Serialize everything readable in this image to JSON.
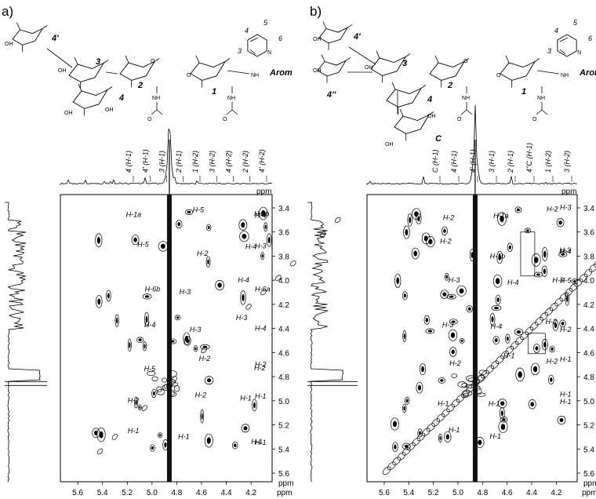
{
  "panels": [
    {
      "tag": "a)",
      "structure_labels": {
        "residues": [
          "4'",
          "3",
          "4",
          "2",
          "1",
          "Arom"
        ],
        "ring_numbers": [
          "4",
          "5",
          "6",
          "3"
        ]
      },
      "top_trace_labels": [
        "4 (H-1)",
        "4' (H-1)",
        "3 (H-1)",
        "2 (H-1)",
        "1 (H-2)",
        "3 (H-2)",
        "4 (H-2)",
        "2 (H-2)",
        "4' (H-2)"
      ],
      "cross_peak_labels": [
        "H-1a",
        "H-5",
        "H-1b",
        "H-4",
        "H-5",
        "H-2",
        "H-4",
        "H-3",
        "H-6b",
        "H-3",
        "H-4",
        "H-6a",
        "H-4",
        "H-3",
        "H-3",
        "H-4",
        "H-5",
        "H-2",
        "H-2",
        "H-2",
        "H-2",
        "H-2",
        "H-1",
        "H-1",
        "H-1",
        "H-1",
        "H-1",
        "H-1"
      ],
      "axis_unit": "ppm",
      "x_ticks": [
        "5.6",
        "5.4",
        "5.2",
        "5.0",
        "4.8",
        "4.6",
        "4.4",
        "4.2",
        "ppm"
      ],
      "y_ticks": [
        "3.4",
        "3.6",
        "3.8",
        "4.0",
        "4.2",
        "4.4",
        "4.6",
        "4.8",
        "5.0",
        "5.2",
        "5.4",
        "5.6",
        "ppm"
      ]
    },
    {
      "tag": "b)",
      "structure_labels": {
        "residues": [
          "4'",
          "3",
          "4''",
          "4",
          "2",
          "1",
          "Arom",
          "C"
        ],
        "ring_numbers": [
          "4",
          "5",
          "6",
          "3"
        ]
      },
      "top_trace_labels": [
        "C (H-1)",
        "4 (H-1)",
        "4' (H-1)",
        "3 (H-1)",
        "2 (H-1)",
        "4''C (H-1)",
        "1 (H-2)",
        "3 (H-2)"
      ],
      "cross_peak_labels": [
        "H-2",
        "H-1a",
        "H-2",
        "H-3",
        "H-2",
        "H-1b",
        "H-3",
        "H-4",
        "H-3",
        "H-4",
        "H-3",
        "H-5",
        "H-3",
        "H-4",
        "H-2",
        "H-2",
        "H-2",
        "H-1",
        "H-2",
        "H-1",
        "H-1",
        "H-1",
        "H-1",
        "H-1",
        "H-1",
        "H-1"
      ],
      "axis_unit": "ppm",
      "x_ticks": [
        "5.6",
        "5.4",
        "5.2",
        "5.0",
        "4.8",
        "4.6",
        "4.4",
        "4.2",
        "ppm"
      ],
      "y_ticks": [
        "3.4",
        "3.6",
        "3.8",
        "4.0",
        "4.2",
        "4.4",
        "4.6",
        "4.8",
        "5.0",
        "5.2",
        "5.4",
        "5.6",
        "ppm"
      ]
    }
  ],
  "pyridine_n": "N",
  "nh": "NH",
  "oh": "OH",
  "o": "O"
}
